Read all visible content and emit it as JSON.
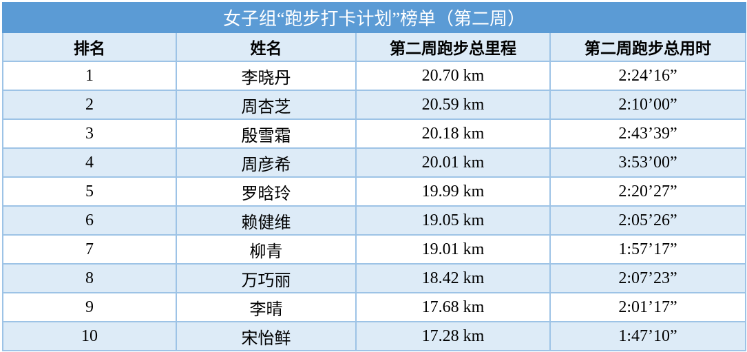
{
  "title": "女子组“跑步打卡计划”榜单（第二周）",
  "headers": [
    "排名",
    "姓名",
    "第二周跑步总里程",
    "第二周跑步总用时"
  ],
  "colors": {
    "title_bg": "#5B9BD5",
    "stripe": "#DDEBF7",
    "border": "#9DC3E6"
  },
  "rows": [
    {
      "rank": "1",
      "name": "李晓丹",
      "distance": "20.70 km",
      "time": "2:24’16”"
    },
    {
      "rank": "2",
      "name": "周杏芝",
      "distance": "20.59 km",
      "time": "2:10’00”"
    },
    {
      "rank": "3",
      "name": "殷雪霜",
      "distance": "20.18 km",
      "time": "2:43’39”"
    },
    {
      "rank": "4",
      "name": "周彦希",
      "distance": "20.01 km",
      "time": "3:53’00”"
    },
    {
      "rank": "5",
      "name": "罗晗玲",
      "distance": "19.99 km",
      "time": "2:20’27”"
    },
    {
      "rank": "6",
      "name": "赖健维",
      "distance": "19.05 km",
      "time": "2:05’26”"
    },
    {
      "rank": "7",
      "name": "柳青",
      "distance": "19.01 km",
      "time": "1:57’17”"
    },
    {
      "rank": "8",
      "name": "万巧丽",
      "distance": "18.42 km",
      "time": "2:07’23”"
    },
    {
      "rank": "9",
      "name": "李晴",
      "distance": "17.68 km",
      "time": "2:01’17”"
    },
    {
      "rank": "10",
      "name": "宋怡鲜",
      "distance": "17.28 km",
      "time": "1:47’10”"
    }
  ]
}
